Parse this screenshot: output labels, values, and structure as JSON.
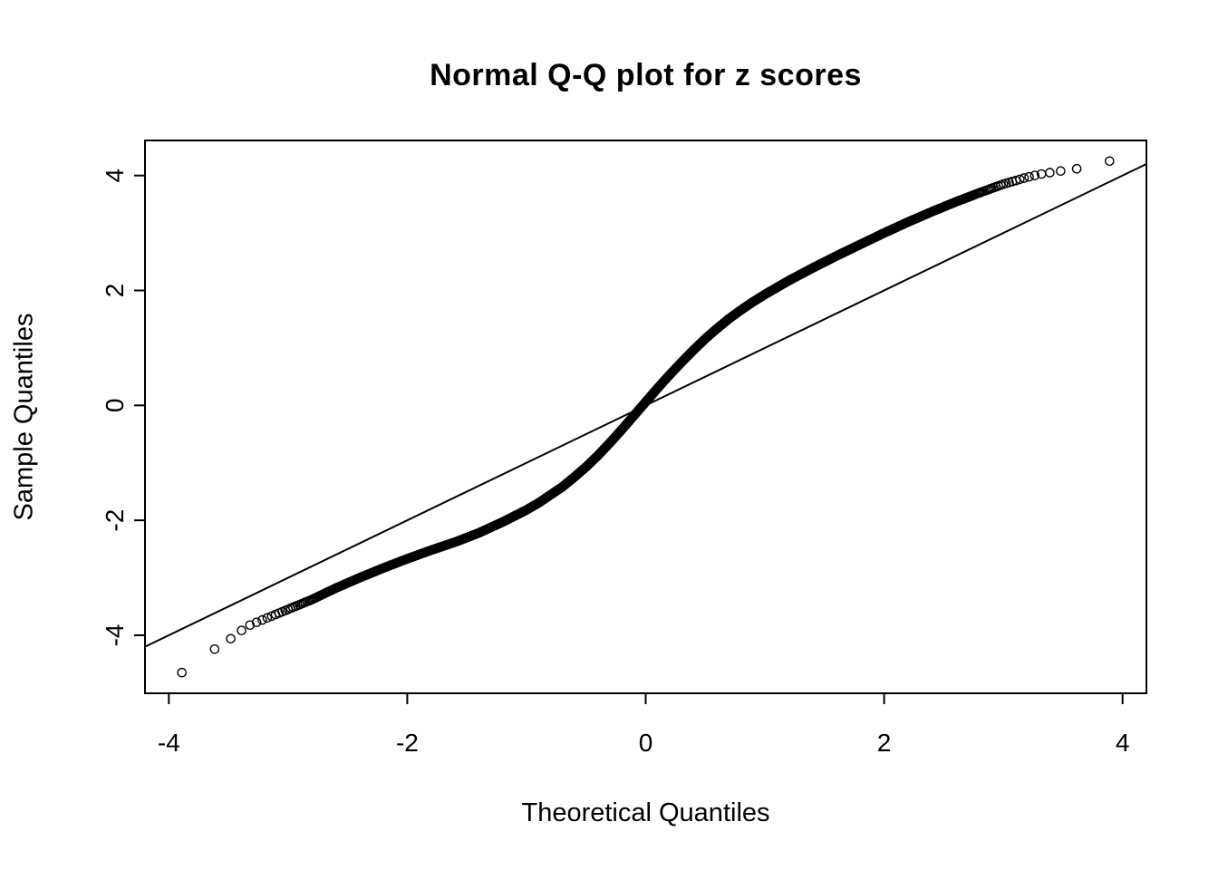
{
  "chart_data": {
    "type": "scatter",
    "title": "Normal Q-Q plot for z scores",
    "xlabel": "Theoretical Quantiles",
    "ylabel": "Sample Quantiles",
    "xlim": [
      -4.2,
      4.2
    ],
    "ylim": [
      -5.01,
      4.61
    ],
    "xticks": [
      -4,
      -2,
      0,
      2,
      4
    ],
    "yticks": [
      -4,
      -2,
      0,
      2,
      4
    ],
    "grid": false,
    "legend": null,
    "marker": "open-circle",
    "colors": {
      "points": "#000000",
      "line": "#000000",
      "background": "#ffffff"
    },
    "n_points": 10000,
    "reference_line": {
      "slope": 1,
      "intercept": 0
    },
    "curve_knots": [
      [
        -3.89,
        -4.65
      ],
      [
        -3.6,
        -4.22
      ],
      [
        -3.45,
        -4.02
      ],
      [
        -3.35,
        -3.85
      ],
      [
        -3.2,
        -3.72
      ],
      [
        -3.0,
        -3.55
      ],
      [
        -2.8,
        -3.38
      ],
      [
        -2.6,
        -3.18
      ],
      [
        -2.4,
        -3.0
      ],
      [
        -2.2,
        -2.83
      ],
      [
        -2.0,
        -2.67
      ],
      [
        -1.8,
        -2.52
      ],
      [
        -1.6,
        -2.38
      ],
      [
        -1.4,
        -2.22
      ],
      [
        -1.2,
        -2.03
      ],
      [
        -1.0,
        -1.82
      ],
      [
        -0.9,
        -1.7
      ],
      [
        -0.8,
        -1.56
      ],
      [
        -0.7,
        -1.42
      ],
      [
        -0.6,
        -1.25
      ],
      [
        -0.5,
        -1.07
      ],
      [
        -0.4,
        -0.87
      ],
      [
        -0.3,
        -0.65
      ],
      [
        -0.2,
        -0.42
      ],
      [
        -0.1,
        -0.18
      ],
      [
        0.0,
        0.06
      ],
      [
        0.1,
        0.3
      ],
      [
        0.2,
        0.53
      ],
      [
        0.3,
        0.75
      ],
      [
        0.4,
        0.96
      ],
      [
        0.5,
        1.16
      ],
      [
        0.6,
        1.34
      ],
      [
        0.7,
        1.51
      ],
      [
        0.8,
        1.66
      ],
      [
        0.9,
        1.8
      ],
      [
        1.0,
        1.93
      ],
      [
        1.2,
        2.17
      ],
      [
        1.4,
        2.39
      ],
      [
        1.6,
        2.6
      ],
      [
        1.8,
        2.8
      ],
      [
        2.0,
        3.0
      ],
      [
        2.2,
        3.19
      ],
      [
        2.4,
        3.37
      ],
      [
        2.6,
        3.54
      ],
      [
        2.8,
        3.7
      ],
      [
        3.0,
        3.85
      ],
      [
        3.1,
        3.91
      ],
      [
        3.2,
        3.97
      ],
      [
        3.3,
        4.02
      ],
      [
        3.45,
        4.07
      ],
      [
        3.6,
        4.11
      ],
      [
        3.89,
        4.25
      ]
    ]
  }
}
